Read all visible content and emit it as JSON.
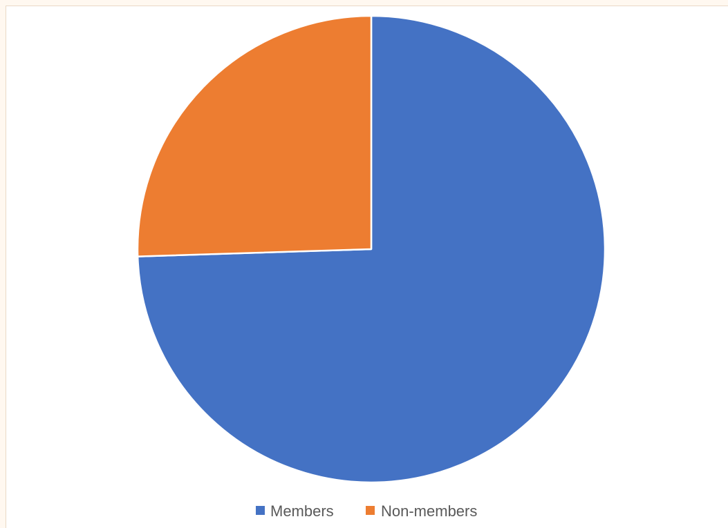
{
  "chart_data": {
    "type": "pie",
    "title": "",
    "slices": [
      {
        "label": "Members",
        "value": 74.5,
        "color": "#4472c4"
      },
      {
        "label": "Non-members",
        "value": 25.5,
        "color": "#ed7d31"
      }
    ],
    "start_angle_deg": 0,
    "direction": "clockwise",
    "slice_border_color": "#ffffff",
    "legend": {
      "position": "bottom",
      "entries": [
        "Members",
        "Non-members"
      ]
    }
  }
}
